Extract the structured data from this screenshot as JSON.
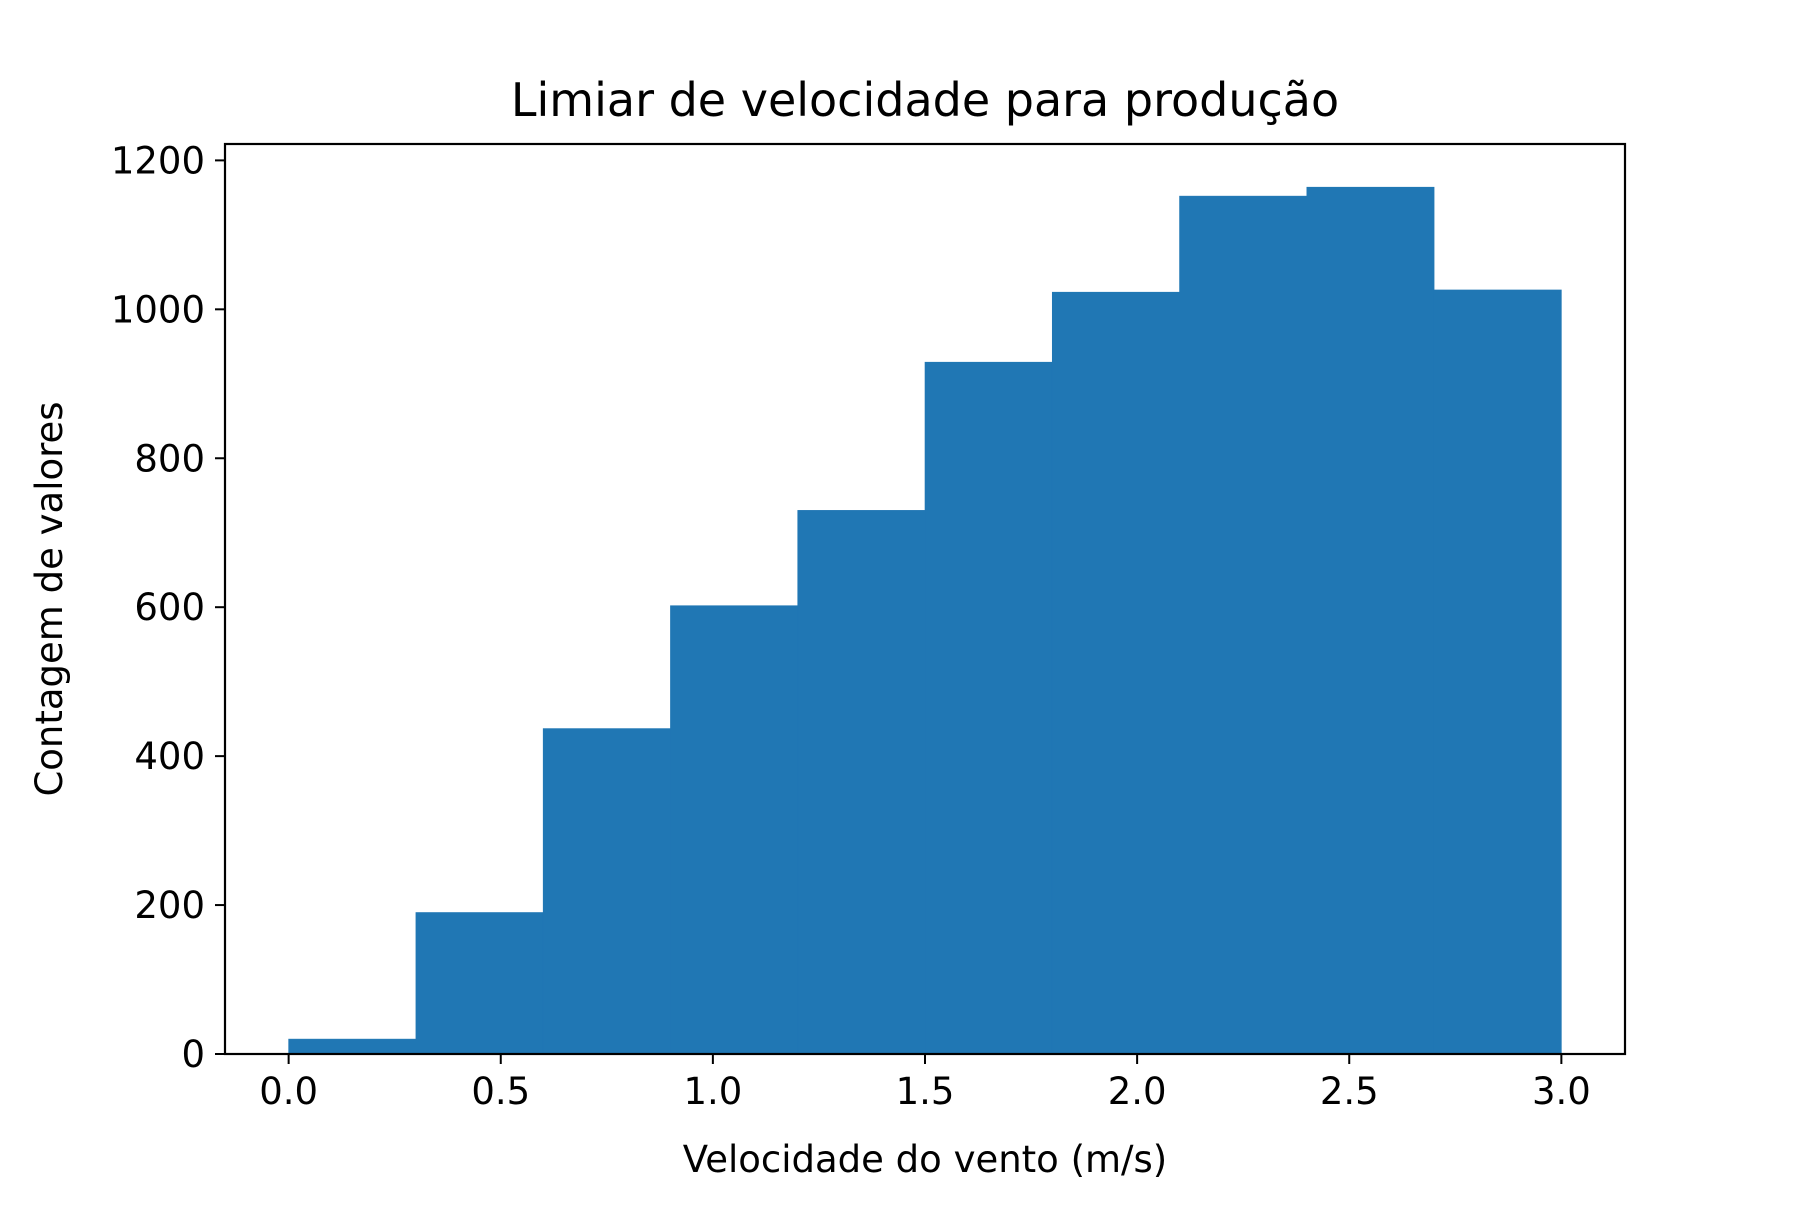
{
  "chart_data": {
    "type": "bar",
    "title": "Limiar de velocidade para produção",
    "xlabel": "Velocidade do vento (m/s)",
    "ylabel": "Contagem de valores",
    "bin_edges": [
      0.0,
      0.3,
      0.6,
      0.9,
      1.2,
      1.5,
      1.8,
      2.1,
      2.4,
      2.7,
      3.0
    ],
    "values": [
      20,
      190,
      437,
      602,
      730,
      929,
      1023,
      1152,
      1164,
      1026
    ],
    "xlim": [
      -0.15,
      3.15
    ],
    "ylim": [
      0,
      1222
    ],
    "xticks": [
      0.0,
      0.5,
      1.0,
      1.5,
      2.0,
      2.5,
      3.0
    ],
    "xtick_labels": [
      "0.0",
      "0.5",
      "1.0",
      "1.5",
      "2.0",
      "2.5",
      "3.0"
    ],
    "yticks": [
      0,
      200,
      400,
      600,
      800,
      1000,
      1200
    ],
    "ytick_labels": [
      "0",
      "200",
      "400",
      "600",
      "800",
      "1000",
      "1200"
    ],
    "grid": false,
    "legend": "none",
    "bar_color": "#2077b4"
  }
}
